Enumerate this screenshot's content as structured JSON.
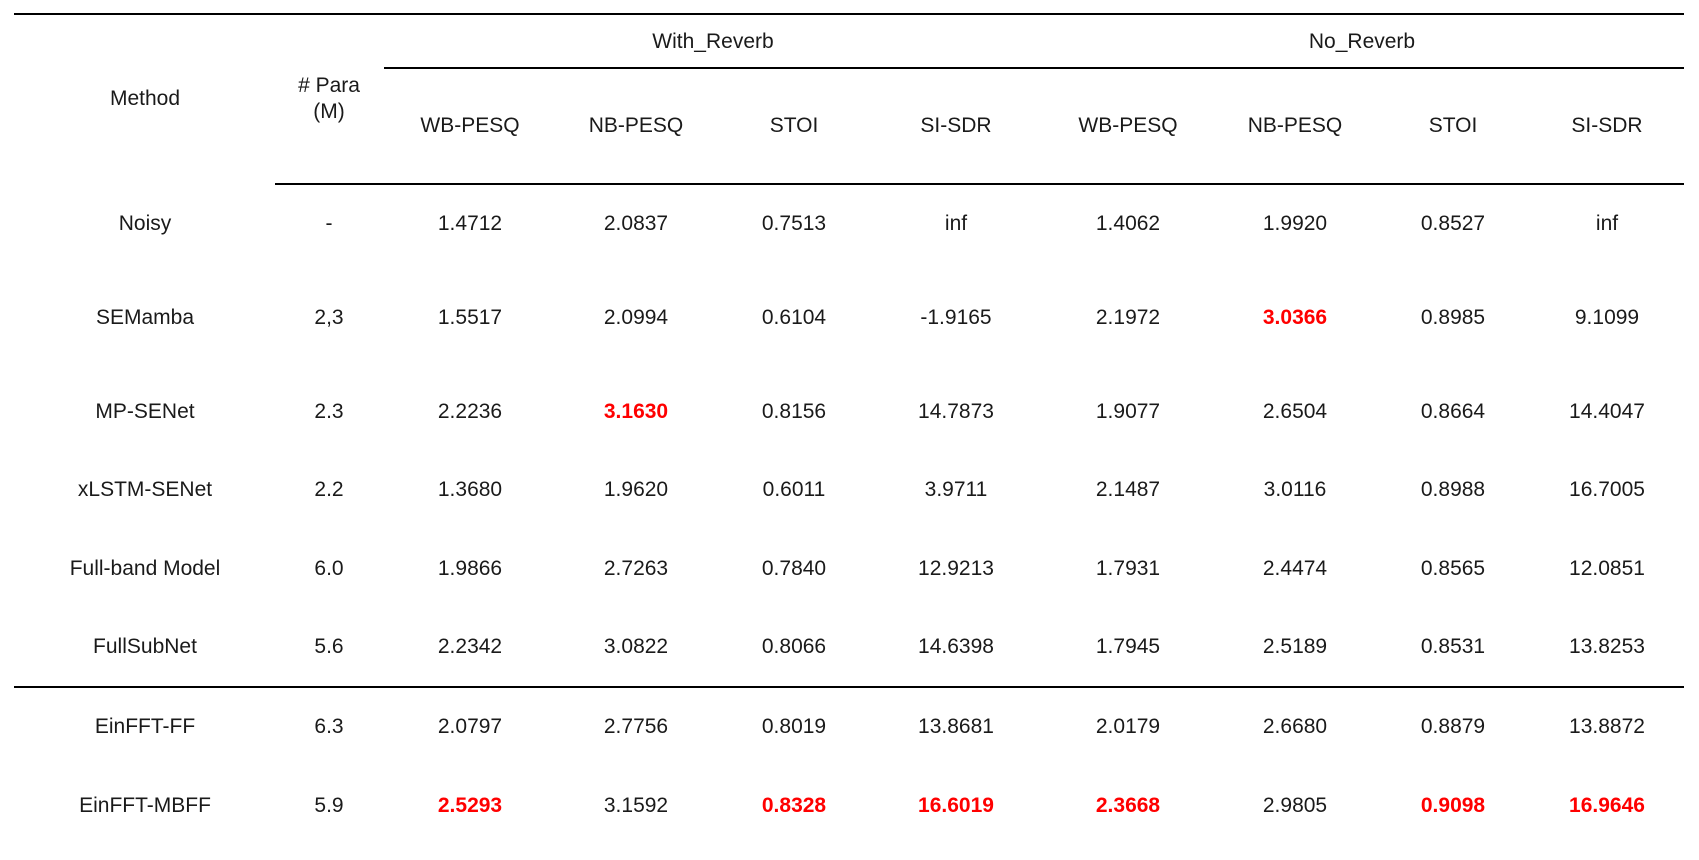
{
  "table": {
    "header": {
      "method": "Method",
      "para_line1": "# Para",
      "para_line2": "(M)",
      "group_with_reverb": "With_Reverb",
      "group_no_reverb": "No_Reverb",
      "metrics": [
        "WB-PESQ",
        "NB-PESQ",
        "STOI",
        "SI-SDR",
        "WB-PESQ",
        "NB-PESQ",
        "STOI",
        "SI-SDR"
      ]
    },
    "rows": [
      {
        "method": "Noisy",
        "para": "-",
        "values": [
          "1.4712",
          "2.0837",
          "0.7513",
          "inf",
          "1.4062",
          "1.9920",
          "0.8527",
          "inf"
        ],
        "best": []
      },
      {
        "method": "SEMamba",
        "para": "2,3",
        "values": [
          "1.5517",
          "2.0994",
          "0.6104",
          "-1.9165",
          "2.1972",
          "3.0366",
          "0.8985",
          "9.1099"
        ],
        "best": [
          5
        ]
      },
      {
        "method": "MP-SENet",
        "para": "2.3",
        "values": [
          "2.2236",
          "3.1630",
          "0.8156",
          "14.7873",
          "1.9077",
          "2.6504",
          "0.8664",
          "14.4047"
        ],
        "best": [
          1
        ]
      },
      {
        "method": "xLSTM-SENet",
        "para": "2.2",
        "values": [
          "1.3680",
          "1.9620",
          "0.6011",
          "3.9711",
          "2.1487",
          "3.0116",
          "0.8988",
          "16.7005"
        ],
        "best": []
      },
      {
        "method": "Full-band Model",
        "para": "6.0",
        "values": [
          "1.9866",
          "2.7263",
          "0.7840",
          "12.9213",
          "1.7931",
          "2.4474",
          "0.8565",
          "12.0851"
        ],
        "best": []
      },
      {
        "method": "FullSubNet",
        "para": "5.6",
        "values": [
          "2.2342",
          "3.0822",
          "0.8066",
          "14.6398",
          "1.7945",
          "2.5189",
          "0.8531",
          "13.8253"
        ],
        "best": []
      },
      {
        "method": "EinFFT-FF",
        "para": "6.3",
        "values": [
          "2.0797",
          "2.7756",
          "0.8019",
          "13.8681",
          "2.0179",
          "2.6680",
          "0.8879",
          "13.8872"
        ],
        "best": []
      },
      {
        "method": "EinFFT-MBFF",
        "para": "5.9",
        "values": [
          "2.5293",
          "3.1592",
          "0.8328",
          "16.6019",
          "2.3668",
          "2.9805",
          "0.9098",
          "16.9646"
        ],
        "best": [
          0,
          2,
          3,
          4,
          6,
          7
        ]
      }
    ],
    "colors": {
      "text": "#1a1a1a",
      "best": "#ff0000",
      "rule": "#000000"
    }
  }
}
